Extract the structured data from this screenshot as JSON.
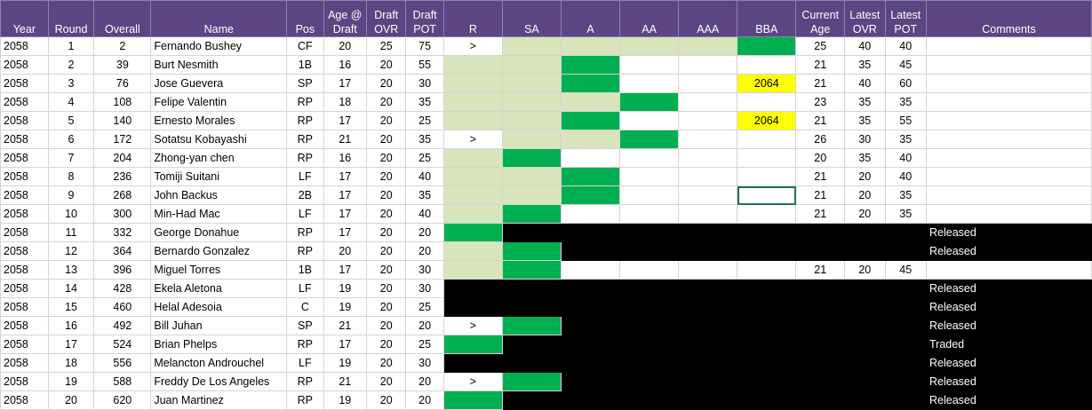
{
  "headers": [
    "Year",
    "Round",
    "Overall",
    "Name",
    "Pos",
    "Age @ Draft",
    "Draft OVR",
    "Draft POT",
    "R",
    "SA",
    "A",
    "AA",
    "AAA",
    "BBA",
    "Current Age",
    "Latest OVR",
    "Latest POT",
    "Comments"
  ],
  "colors": {
    "header": "#5b4582",
    "light_green": "#d8e4bc",
    "green": "#00b050",
    "yellow": "#ffff00",
    "black": "#000000"
  },
  "rows": [
    {
      "year": "2058",
      "round": "1",
      "overall": "2",
      "name": "Fernando Bushey",
      "pos": "CF",
      "age": "20",
      "dovr": "25",
      "dpot": "75",
      "levels": [
        {
          "v": ">",
          "s": ""
        },
        {
          "v": "",
          "s": "lc"
        },
        {
          "v": "",
          "s": "lc"
        },
        {
          "v": "",
          "s": "lc"
        },
        {
          "v": "",
          "s": "lc"
        },
        {
          "v": "",
          "s": "g"
        }
      ],
      "cage": "25",
      "lovr": "40",
      "lpot": "40",
      "comment": "",
      "black": false
    },
    {
      "year": "2058",
      "round": "2",
      "overall": "39",
      "name": "Burt Nesmith",
      "pos": "1B",
      "age": "16",
      "dovr": "20",
      "dpot": "55",
      "levels": [
        {
          "v": "",
          "s": "lc"
        },
        {
          "v": "",
          "s": "lc"
        },
        {
          "v": "",
          "s": "g"
        },
        {
          "v": "",
          "s": ""
        },
        {
          "v": "",
          "s": ""
        },
        {
          "v": "",
          "s": ""
        }
      ],
      "cage": "21",
      "lovr": "35",
      "lpot": "45",
      "comment": "",
      "black": false
    },
    {
      "year": "2058",
      "round": "3",
      "overall": "76",
      "name": "Jose Guevera",
      "pos": "SP",
      "age": "17",
      "dovr": "20",
      "dpot": "30",
      "levels": [
        {
          "v": "",
          "s": "lc"
        },
        {
          "v": "",
          "s": "lc"
        },
        {
          "v": "",
          "s": "g"
        },
        {
          "v": "",
          "s": ""
        },
        {
          "v": "",
          "s": ""
        },
        {
          "v": "2064",
          "s": "y"
        }
      ],
      "cage": "21",
      "lovr": "40",
      "lpot": "60",
      "comment": "",
      "black": false
    },
    {
      "year": "2058",
      "round": "4",
      "overall": "108",
      "name": "Felipe Valentin",
      "pos": "RP",
      "age": "18",
      "dovr": "20",
      "dpot": "35",
      "levels": [
        {
          "v": "",
          "s": "lc"
        },
        {
          "v": "",
          "s": "lc"
        },
        {
          "v": "",
          "s": "lc"
        },
        {
          "v": "",
          "s": "g"
        },
        {
          "v": "",
          "s": ""
        },
        {
          "v": "",
          "s": ""
        }
      ],
      "cage": "23",
      "lovr": "35",
      "lpot": "35",
      "comment": "",
      "black": false
    },
    {
      "year": "2058",
      "round": "5",
      "overall": "140",
      "name": "Ernesto Morales",
      "pos": "RP",
      "age": "17",
      "dovr": "20",
      "dpot": "25",
      "levels": [
        {
          "v": "",
          "s": "lc"
        },
        {
          "v": "",
          "s": "lc"
        },
        {
          "v": "",
          "s": "g"
        },
        {
          "v": "",
          "s": ""
        },
        {
          "v": "",
          "s": ""
        },
        {
          "v": "2064",
          "s": "y"
        }
      ],
      "cage": "21",
      "lovr": "35",
      "lpot": "55",
      "comment": "",
      "black": false
    },
    {
      "year": "2058",
      "round": "6",
      "overall": "172",
      "name": "Sotatsu Kobayashi",
      "pos": "RP",
      "age": "21",
      "dovr": "20",
      "dpot": "35",
      "levels": [
        {
          "v": ">",
          "s": ""
        },
        {
          "v": "",
          "s": "lc"
        },
        {
          "v": "",
          "s": "lc"
        },
        {
          "v": "",
          "s": "g"
        },
        {
          "v": "",
          "s": ""
        },
        {
          "v": "",
          "s": ""
        }
      ],
      "cage": "26",
      "lovr": "30",
      "lpot": "35",
      "comment": "",
      "black": false
    },
    {
      "year": "2058",
      "round": "7",
      "overall": "204",
      "name": "Zhong-yan chen",
      "pos": "RP",
      "age": "16",
      "dovr": "20",
      "dpot": "25",
      "levels": [
        {
          "v": "",
          "s": "lc"
        },
        {
          "v": "",
          "s": "g"
        },
        {
          "v": "",
          "s": ""
        },
        {
          "v": "",
          "s": ""
        },
        {
          "v": "",
          "s": ""
        },
        {
          "v": "",
          "s": ""
        }
      ],
      "cage": "20",
      "lovr": "35",
      "lpot": "40",
      "comment": "",
      "black": false
    },
    {
      "year": "2058",
      "round": "8",
      "overall": "236",
      "name": "Tomiji Suitani",
      "pos": "LF",
      "age": "17",
      "dovr": "20",
      "dpot": "40",
      "levels": [
        {
          "v": "",
          "s": "lc"
        },
        {
          "v": "",
          "s": "lc"
        },
        {
          "v": "",
          "s": "g"
        },
        {
          "v": "",
          "s": ""
        },
        {
          "v": "",
          "s": ""
        },
        {
          "v": "",
          "s": ""
        }
      ],
      "cage": "21",
      "lovr": "20",
      "lpot": "40",
      "comment": "",
      "black": false
    },
    {
      "year": "2058",
      "round": "9",
      "overall": "268",
      "name": "John Backus",
      "pos": "2B",
      "age": "17",
      "dovr": "20",
      "dpot": "35",
      "levels": [
        {
          "v": "",
          "s": "lc"
        },
        {
          "v": "",
          "s": "lc"
        },
        {
          "v": "",
          "s": "g"
        },
        {
          "v": "",
          "s": ""
        },
        {
          "v": "",
          "s": ""
        },
        {
          "v": "",
          "s": "sel"
        }
      ],
      "cage": "21",
      "lovr": "20",
      "lpot": "35",
      "comment": "",
      "black": false
    },
    {
      "year": "2058",
      "round": "10",
      "overall": "300",
      "name": "Min-Had Mac",
      "pos": "LF",
      "age": "17",
      "dovr": "20",
      "dpot": "40",
      "levels": [
        {
          "v": "",
          "s": "lc"
        },
        {
          "v": "",
          "s": "g"
        },
        {
          "v": "",
          "s": ""
        },
        {
          "v": "",
          "s": ""
        },
        {
          "v": "",
          "s": ""
        },
        {
          "v": "",
          "s": ""
        }
      ],
      "cage": "21",
      "lovr": "20",
      "lpot": "35",
      "comment": "",
      "black": false
    },
    {
      "year": "2058",
      "round": "11",
      "overall": "332",
      "name": "George Donahue",
      "pos": "RP",
      "age": "17",
      "dovr": "20",
      "dpot": "20",
      "levels": [
        {
          "v": "",
          "s": "g"
        },
        {
          "v": "",
          "s": "k"
        },
        {
          "v": "",
          "s": "k"
        },
        {
          "v": "",
          "s": "k"
        },
        {
          "v": "",
          "s": "k"
        },
        {
          "v": "",
          "s": "k"
        }
      ],
      "cage": "",
      "lovr": "",
      "lpot": "",
      "comment": "Released",
      "black": true
    },
    {
      "year": "2058",
      "round": "12",
      "overall": "364",
      "name": "Bernardo Gonzalez",
      "pos": "RP",
      "age": "20",
      "dovr": "20",
      "dpot": "20",
      "levels": [
        {
          "v": "",
          "s": "lc"
        },
        {
          "v": "",
          "s": "g"
        },
        {
          "v": "",
          "s": "k"
        },
        {
          "v": "",
          "s": "k"
        },
        {
          "v": "",
          "s": "k"
        },
        {
          "v": "",
          "s": "k"
        }
      ],
      "cage": "",
      "lovr": "",
      "lpot": "",
      "comment": "Released",
      "black": true
    },
    {
      "year": "2058",
      "round": "13",
      "overall": "396",
      "name": "Miguel Torres",
      "pos": "1B",
      "age": "17",
      "dovr": "20",
      "dpot": "30",
      "levels": [
        {
          "v": "",
          "s": "lc"
        },
        {
          "v": "",
          "s": "g"
        },
        {
          "v": "",
          "s": ""
        },
        {
          "v": "",
          "s": ""
        },
        {
          "v": "",
          "s": ""
        },
        {
          "v": "",
          "s": ""
        }
      ],
      "cage": "21",
      "lovr": "20",
      "lpot": "45",
      "comment": "",
      "black": false
    },
    {
      "year": "2058",
      "round": "14",
      "overall": "428",
      "name": "Ekela Aletona",
      "pos": "LF",
      "age": "19",
      "dovr": "20",
      "dpot": "30",
      "levels": [
        {
          "v": "",
          "s": "k"
        },
        {
          "v": "",
          "s": "k"
        },
        {
          "v": "",
          "s": "k"
        },
        {
          "v": "",
          "s": "k"
        },
        {
          "v": "",
          "s": "k"
        },
        {
          "v": "",
          "s": "k"
        }
      ],
      "cage": "",
      "lovr": "",
      "lpot": "",
      "comment": "Released",
      "black": true
    },
    {
      "year": "2058",
      "round": "15",
      "overall": "460",
      "name": "Helal Adesoia",
      "pos": "C",
      "age": "19",
      "dovr": "20",
      "dpot": "25",
      "levels": [
        {
          "v": "",
          "s": "k"
        },
        {
          "v": "",
          "s": "k"
        },
        {
          "v": "",
          "s": "k"
        },
        {
          "v": "",
          "s": "k"
        },
        {
          "v": "",
          "s": "k"
        },
        {
          "v": "",
          "s": "k"
        }
      ],
      "cage": "",
      "lovr": "",
      "lpot": "",
      "comment": "Released",
      "black": true
    },
    {
      "year": "2058",
      "round": "16",
      "overall": "492",
      "name": "Bill Juhan",
      "pos": "SP",
      "age": "21",
      "dovr": "20",
      "dpot": "20",
      "levels": [
        {
          "v": ">",
          "s": ""
        },
        {
          "v": "",
          "s": "g"
        },
        {
          "v": "",
          "s": "k"
        },
        {
          "v": "",
          "s": "k"
        },
        {
          "v": "",
          "s": "k"
        },
        {
          "v": "",
          "s": "k"
        }
      ],
      "cage": "",
      "lovr": "",
      "lpot": "",
      "comment": "Released",
      "black": true
    },
    {
      "year": "2058",
      "round": "17",
      "overall": "524",
      "name": "Brian Phelps",
      "pos": "RP",
      "age": "17",
      "dovr": "20",
      "dpot": "25",
      "levels": [
        {
          "v": "",
          "s": "g"
        },
        {
          "v": "",
          "s": "k"
        },
        {
          "v": "",
          "s": "k"
        },
        {
          "v": "",
          "s": "k"
        },
        {
          "v": "",
          "s": "k"
        },
        {
          "v": "",
          "s": "k"
        }
      ],
      "cage": "",
      "lovr": "",
      "lpot": "",
      "comment": "Traded",
      "black": true
    },
    {
      "year": "2058",
      "round": "18",
      "overall": "556",
      "name": "Melancton Androuchel",
      "pos": "LF",
      "age": "19",
      "dovr": "20",
      "dpot": "30",
      "levels": [
        {
          "v": "",
          "s": "k"
        },
        {
          "v": "",
          "s": "k"
        },
        {
          "v": "",
          "s": "k"
        },
        {
          "v": "",
          "s": "k"
        },
        {
          "v": "",
          "s": "k"
        },
        {
          "v": "",
          "s": "k"
        }
      ],
      "cage": "",
      "lovr": "",
      "lpot": "",
      "comment": "Released",
      "black": true
    },
    {
      "year": "2058",
      "round": "19",
      "overall": "588",
      "name": "Freddy De Los Angeles",
      "pos": "RP",
      "age": "21",
      "dovr": "20",
      "dpot": "20",
      "levels": [
        {
          "v": ">",
          "s": ""
        },
        {
          "v": "",
          "s": "g"
        },
        {
          "v": "",
          "s": "k"
        },
        {
          "v": "",
          "s": "k"
        },
        {
          "v": "",
          "s": "k"
        },
        {
          "v": "",
          "s": "k"
        }
      ],
      "cage": "",
      "lovr": "",
      "lpot": "",
      "comment": "Released",
      "black": true
    },
    {
      "year": "2058",
      "round": "20",
      "overall": "620",
      "name": "Juan Martinez",
      "pos": "RP",
      "age": "19",
      "dovr": "20",
      "dpot": "20",
      "levels": [
        {
          "v": "",
          "s": "g"
        },
        {
          "v": "",
          "s": "k"
        },
        {
          "v": "",
          "s": "k"
        },
        {
          "v": "",
          "s": "k"
        },
        {
          "v": "",
          "s": "k"
        },
        {
          "v": "",
          "s": "k"
        }
      ],
      "cage": "",
      "lovr": "",
      "lpot": "",
      "comment": "Released",
      "black": true
    }
  ]
}
